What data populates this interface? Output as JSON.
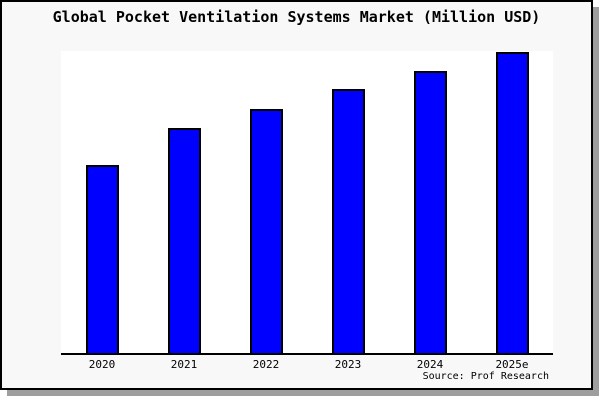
{
  "page": {
    "background_color": "#f8f8f8",
    "plot_background_color": "#ffffff",
    "frame_color": "#000000",
    "shadow_color": "#9e9e9e"
  },
  "chart_data": {
    "type": "bar",
    "title": "Global Pocket Ventilation Systems Market (Million USD)",
    "categories": [
      "2020",
      "2021",
      "2022",
      "2023",
      "2024",
      "2025e"
    ],
    "values": [
      62.7,
      75.0,
      81.2,
      87.7,
      93.7,
      100.0
    ],
    "values_note": "y-axis is unlabeled in the chart; values are relative bar heights expressed as % of the tallest (2025e) bar",
    "xlabel": "",
    "ylabel": "",
    "ylim": [
      0,
      100.5
    ],
    "grid": false,
    "legend": "none",
    "bar_color": "#0000ff",
    "bar_border_color": "#000000",
    "source": "Source: Prof Research"
  }
}
